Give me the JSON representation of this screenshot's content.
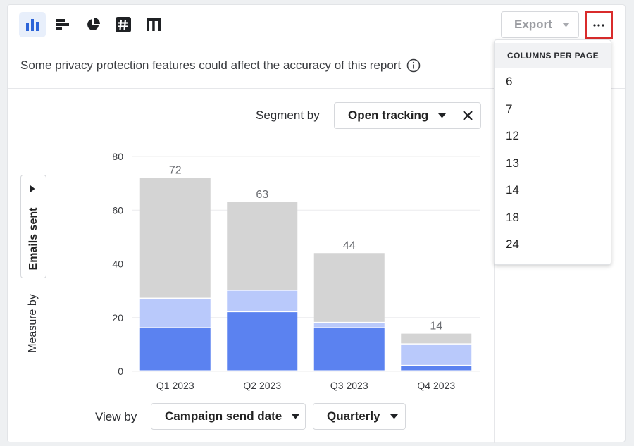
{
  "toolbar": {
    "icons": [
      "bar-chart-icon",
      "horizontal-bar-icon",
      "pie-chart-icon",
      "number-icon",
      "table-icon"
    ],
    "export_label": "Export",
    "more_label": "···"
  },
  "notice": {
    "text": "Some privacy protection features could affect the accuracy of this report"
  },
  "segment": {
    "label": "Segment by",
    "value": "Open tracking"
  },
  "measure": {
    "label": "Measure by",
    "value": "Emails sent"
  },
  "view": {
    "label": "View by",
    "value": "Campaign send date",
    "interval": "Quarterly"
  },
  "menu": {
    "heading": "COLUMNS PER PAGE",
    "options": [
      "6",
      "7",
      "12",
      "13",
      "14",
      "18",
      "24"
    ]
  },
  "colors": {
    "accent": "#5b82f0",
    "light": "#b9c9fb",
    "gray": "#d4d4d4",
    "brand_active_bg": "#e8effb",
    "highlight": "#d92b2b"
  },
  "chart_data": {
    "type": "bar",
    "stacked": true,
    "categories": [
      "Q1 2023",
      "Q2 2023",
      "Q3 2023",
      "Q4 2023"
    ],
    "series": [
      {
        "values": [
          16,
          22,
          16,
          2
        ],
        "color": "#5b82f0"
      },
      {
        "values": [
          11,
          8,
          2,
          8
        ],
        "color": "#b9c9fb"
      },
      {
        "values": [
          45,
          33,
          26,
          4
        ],
        "color": "#d4d4d4"
      }
    ],
    "totals": [
      72,
      63,
      44,
      14
    ],
    "yticks": [
      0,
      20,
      40,
      60,
      80
    ],
    "ylim": [
      0,
      80
    ],
    "grid": true
  }
}
